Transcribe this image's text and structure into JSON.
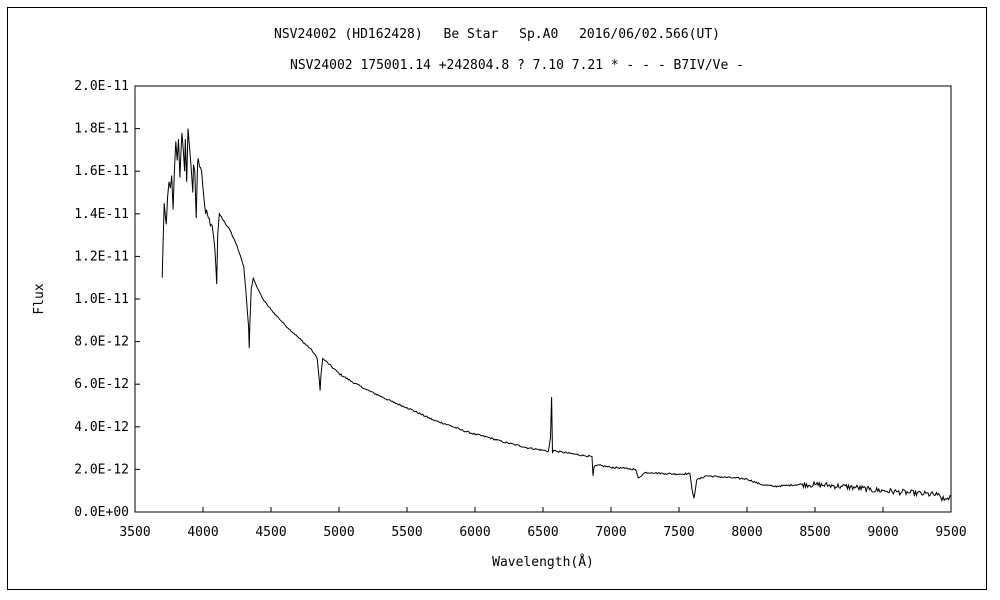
{
  "chart_data": {
    "type": "line",
    "title": "NSV24002 (HD162428)　 Be Star　 Sp.A0　 2016/06/02.566(UT)",
    "subtitle": "NSV24002 175001.14 +242804.8 ? 7.10 7.21 * - - - B7IV/Ve -",
    "xlabel": "Wavelength(Å)",
    "ylabel": "Flux",
    "xlim": [
      3500,
      9500
    ],
    "ylim": [
      0,
      2e-11
    ],
    "x_ticks": [
      3500,
      4000,
      4500,
      5000,
      5500,
      6000,
      6500,
      7000,
      7500,
      8000,
      8500,
      9000,
      9500
    ],
    "x_tick_labels": [
      "3500",
      "4000",
      "4500",
      "5000",
      "5500",
      "6000",
      "6500",
      "7000",
      "7500",
      "8000",
      "8500",
      "9000",
      "9500"
    ],
    "y_ticks": [
      0,
      2e-12,
      4e-12,
      6e-12,
      8e-12,
      1e-11,
      1.2e-11,
      1.4e-11,
      1.6e-11,
      1.8e-11,
      2e-11
    ],
    "y_tick_labels": [
      "0.0E+00",
      "2.0E-12",
      "4.0E-12",
      "6.0E-12",
      "8.0E-12",
      "1.0E-11",
      "1.2E-11",
      "1.4E-11",
      "1.6E-11",
      "1.8E-11",
      "2.0E-11"
    ],
    "grid": false,
    "series": [
      {
        "color": "#000000",
        "x": [
          3700,
          3715,
          3730,
          3740,
          3750,
          3760,
          3770,
          3780,
          3790,
          3800,
          3810,
          3820,
          3830,
          3835,
          3845,
          3855,
          3865,
          3870,
          3880,
          3890,
          3900,
          3905,
          3915,
          3925,
          3930,
          3940,
          3950,
          3960,
          3965,
          3975,
          3990,
          4000,
          4010,
          4020,
          4040,
          4060,
          4080,
          4095,
          4101,
          4108,
          4120,
          4150,
          4200,
          4250,
          4300,
          4320,
          4335,
          4340,
          4345,
          4355,
          4370,
          4400,
          4450,
          4500,
          4600,
          4700,
          4800,
          4840,
          4855,
          4861,
          4867,
          4880,
          4900,
          5000,
          5100,
          5200,
          5300,
          5400,
          5500,
          5600,
          5700,
          5800,
          5900,
          6000,
          6100,
          6200,
          6300,
          6400,
          6500,
          6540,
          6555,
          6563,
          6570,
          6580,
          6600,
          6700,
          6800,
          6860,
          6868,
          6875,
          6900,
          7000,
          7100,
          7180,
          7200,
          7250,
          7300,
          7400,
          7500,
          7580,
          7595,
          7610,
          7630,
          7700,
          7800,
          7900,
          8000,
          8100,
          8200,
          8300,
          8400,
          8500,
          8600,
          8700,
          8800,
          8900,
          9000,
          9100,
          9200,
          9300,
          9400,
          9450,
          9500
        ],
        "y": [
          1.1e-11,
          1.45e-11,
          1.35e-11,
          1.48e-11,
          1.55e-11,
          1.52e-11,
          1.58e-11,
          1.42e-11,
          1.6e-11,
          1.74e-11,
          1.65e-11,
          1.75e-11,
          1.57e-11,
          1.65e-11,
          1.78e-11,
          1.7e-11,
          1.6e-11,
          1.75e-11,
          1.55e-11,
          1.8e-11,
          1.72e-11,
          1.68e-11,
          1.6e-11,
          1.5e-11,
          1.63e-11,
          1.6e-11,
          1.38e-11,
          1.64e-11,
          1.66e-11,
          1.62e-11,
          1.6e-11,
          1.52e-11,
          1.45e-11,
          1.4e-11,
          1.38e-11,
          1.35e-11,
          1.28e-11,
          1.15e-11,
          1.07e-11,
          1.3e-11,
          1.4e-11,
          1.37e-11,
          1.32e-11,
          1.25e-11,
          1.15e-11,
          1e-11,
          8.7e-12,
          7.7e-12,
          8.9e-12,
          1.05e-11,
          1.1e-11,
          1.05e-11,
          9.9e-12,
          9.5e-12,
          8.8e-12,
          8.2e-12,
          7.6e-12,
          7.2e-12,
          6.2e-12,
          5.7e-12,
          6.4e-12,
          7.2e-12,
          7.1e-12,
          6.5e-12,
          6.1e-12,
          5.75e-12,
          5.45e-12,
          5.15e-12,
          4.9e-12,
          4.6e-12,
          4.3e-12,
          4.1e-12,
          3.85e-12,
          3.65e-12,
          3.5e-12,
          3.3e-12,
          3.15e-12,
          3e-12,
          2.9e-12,
          2.85e-12,
          3.5e-12,
          5.4e-12,
          2.8e-12,
          2.9e-12,
          2.85e-12,
          2.75e-12,
          2.65e-12,
          2.6e-12,
          1.7e-12,
          2.1e-12,
          2.2e-12,
          2.1e-12,
          2.05e-12,
          2e-12,
          1.6e-12,
          1.85e-12,
          1.85e-12,
          1.8e-12,
          1.78e-12,
          1.8e-12,
          1.1e-12,
          6.5e-13,
          1.5e-12,
          1.7e-12,
          1.65e-12,
          1.6e-12,
          1.55e-12,
          1.3e-12,
          1.2e-12,
          1.25e-12,
          1.3e-12,
          1.28e-12,
          1.25e-12,
          1.2e-12,
          1.15e-12,
          1.05e-12,
          1e-12,
          9.5e-13,
          9e-13,
          8.5e-13,
          8e-13,
          5.5e-13,
          7.5e-13
        ]
      }
    ]
  }
}
